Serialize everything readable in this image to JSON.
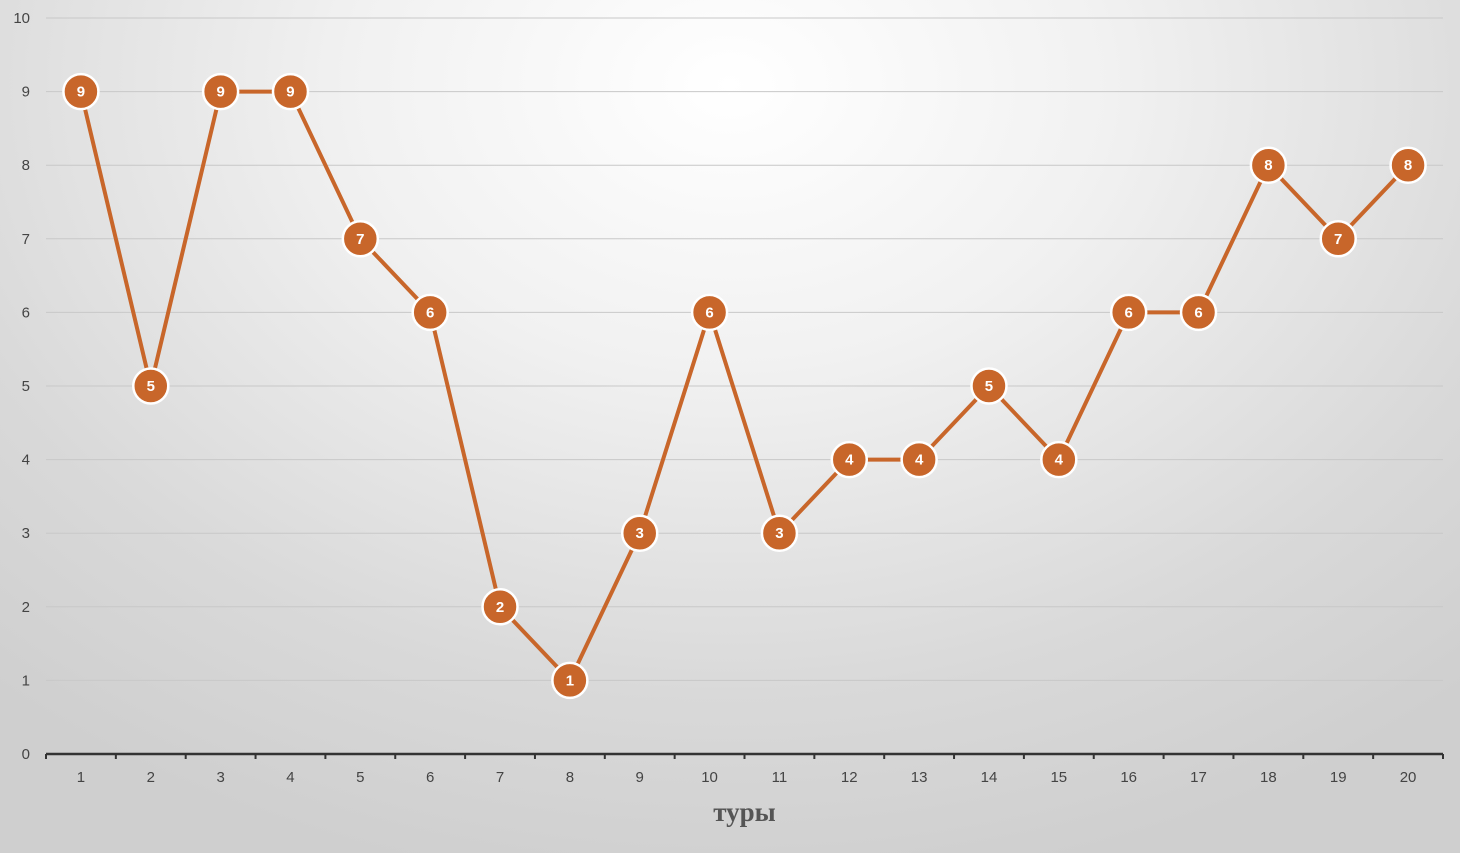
{
  "chart_data": {
    "type": "line",
    "title": "",
    "xlabel": "туры",
    "ylabel": "",
    "categories": [
      "1",
      "2",
      "3",
      "4",
      "5",
      "6",
      "7",
      "8",
      "9",
      "10",
      "11",
      "12",
      "13",
      "14",
      "15",
      "16",
      "17",
      "18",
      "19",
      "20"
    ],
    "series": [
      {
        "values": [
          9,
          5,
          9,
          9,
          7,
          6,
          2,
          1,
          3,
          6,
          3,
          4,
          4,
          5,
          4,
          6,
          6,
          8,
          7,
          8
        ]
      }
    ],
    "ylim": [
      0,
      10
    ],
    "yticks": [
      "0",
      "1",
      "2",
      "3",
      "4",
      "5",
      "6",
      "7",
      "8",
      "9",
      "10"
    ],
    "grid": true,
    "legend": "none",
    "colors": {
      "series": "#c8662a",
      "grid": "#c8c8c8",
      "axis": "#333333"
    }
  }
}
